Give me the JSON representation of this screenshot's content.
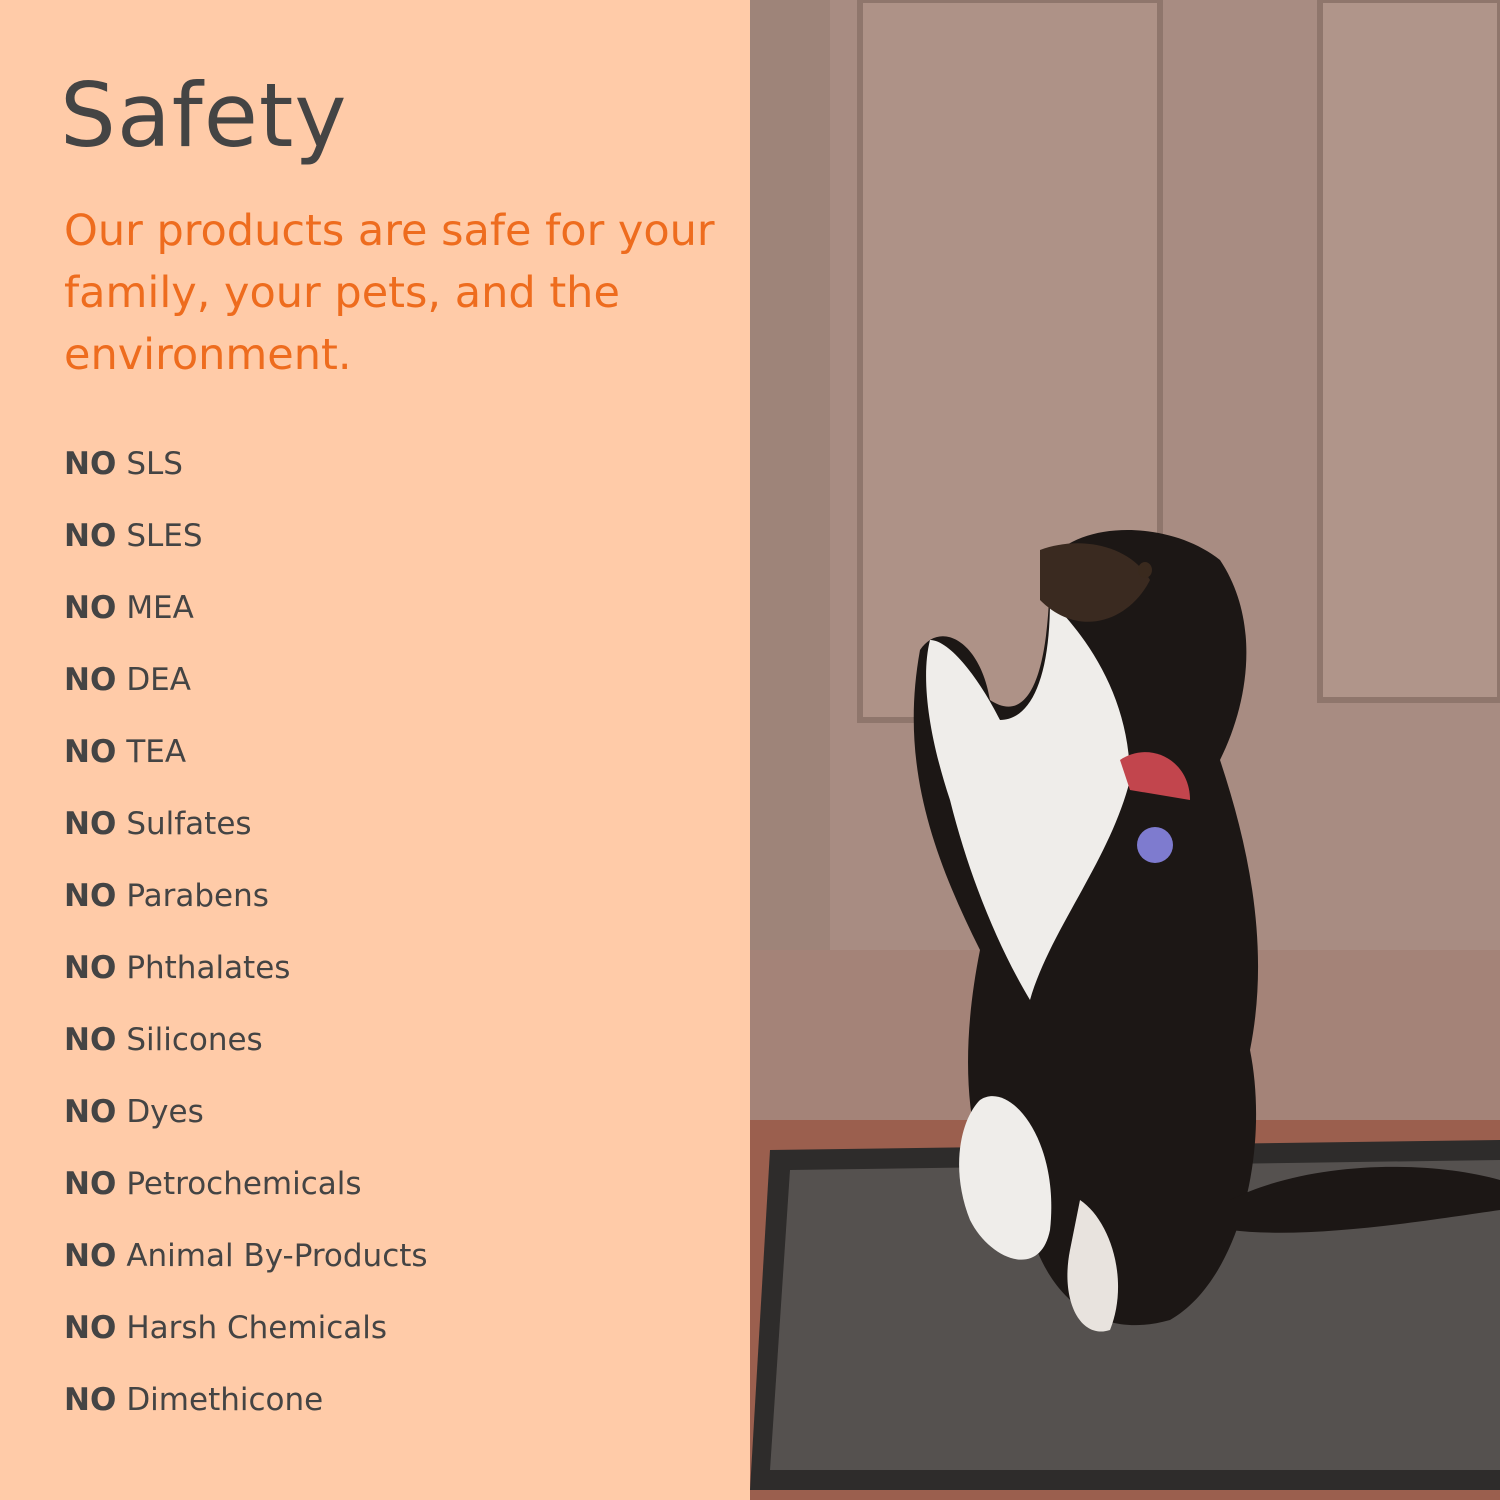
{
  "title": "Safety",
  "subtitle": "Our products are safe for your family, your pets, and the environment.",
  "list": {
    "prefix": "NO",
    "items": [
      "SLS",
      "SLES",
      "MEA",
      "DEA",
      "TEA",
      "Sulfates",
      "Parabens",
      "Phthalates",
      "Silicones",
      "Dyes",
      "Petrochemicals",
      "Animal By-Products",
      "Harsh Chemicals",
      "Dimethicone"
    ]
  },
  "colors": {
    "background": "#FFCBA8",
    "title": "#444444",
    "accent": "#EE6C1E"
  },
  "photo": {
    "subject": "dog-begging-at-door-icon"
  }
}
